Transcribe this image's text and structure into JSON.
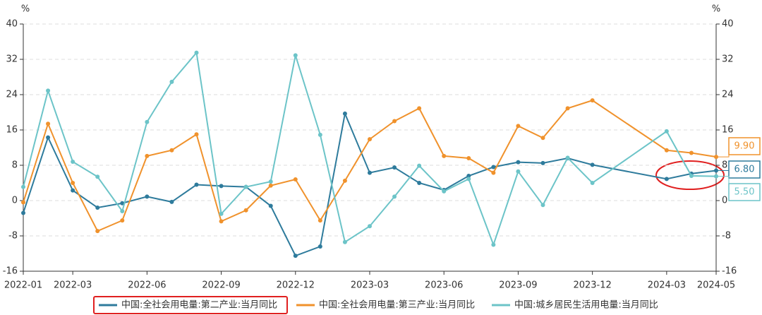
{
  "chart_data": {
    "type": "line",
    "y_unit": "%",
    "y2_unit": "%",
    "x": [
      "2022-01",
      "2022-02",
      "2022-03",
      "2022-04",
      "2022-05",
      "2022-06",
      "2022-07",
      "2022-08",
      "2022-09",
      "2022-10",
      "2022-11",
      "2022-12",
      "2023-01",
      "2023-02",
      "2023-03",
      "2023-04",
      "2023-05",
      "2023-06",
      "2023-07",
      "2023-08",
      "2023-09",
      "2023-10",
      "2023-11",
      "2023-12",
      "2024-03",
      "2024-04",
      "2024-05"
    ],
    "xlim": [
      "2022-01",
      "2024-05"
    ],
    "xticks": [
      "2022-01",
      "2022-03",
      "2022-06",
      "2022-09",
      "2022-12",
      "2023-03",
      "2023-06",
      "2023-09",
      "2023-12",
      "2024-03",
      "2024-05"
    ],
    "ylim": [
      -16,
      40
    ],
    "yticks": [
      -16,
      -8,
      0,
      8,
      16,
      24,
      32,
      40
    ],
    "y2lim": [
      -16,
      40
    ],
    "y2ticks": [
      -16,
      -8,
      0,
      8,
      16,
      24,
      32,
      40
    ],
    "grid": true,
    "legend": "bottom",
    "series": [
      {
        "name": "中国:全社会用电量:第二产业:当月同比",
        "color": "#2e7b9c",
        "values": [
          -2.8,
          14.3,
          2.3,
          -1.6,
          -0.6,
          0.9,
          -0.3,
          3.6,
          3.3,
          3.1,
          -1.2,
          -12.5,
          -10.4,
          19.7,
          6.3,
          7.5,
          4.0,
          2.4,
          5.6,
          7.6,
          8.7,
          8.5,
          9.6,
          8.1,
          4.9,
          6.1,
          6.8
        ],
        "last_label": "6.80"
      },
      {
        "name": "中国:全社会用电量:第三产业:当月同比",
        "color": "#f0922c",
        "values": [
          -0.4,
          17.4,
          4.0,
          -6.9,
          -4.5,
          10.1,
          11.4,
          15.0,
          -4.7,
          -2.2,
          3.4,
          4.8,
          -4.5,
          4.5,
          13.9,
          18.0,
          20.9,
          10.1,
          9.6,
          6.3,
          16.9,
          14.2,
          20.9,
          22.7,
          11.4,
          10.8,
          9.9
        ],
        "last_label": "9.90"
      },
      {
        "name": "中国:城乡居民生活用电量:当月同比",
        "color": "#6cc4c8",
        "values": [
          3.1,
          24.9,
          8.8,
          5.4,
          -2.4,
          17.8,
          26.9,
          33.5,
          -3.0,
          3.1,
          4.3,
          32.9,
          14.9,
          -9.4,
          -5.8,
          0.9,
          7.9,
          2.1,
          4.9,
          -10.0,
          6.6,
          -1.0,
          9.7,
          4.0,
          15.7,
          5.6,
          5.5
        ],
        "last_label": "5.50"
      }
    ]
  }
}
